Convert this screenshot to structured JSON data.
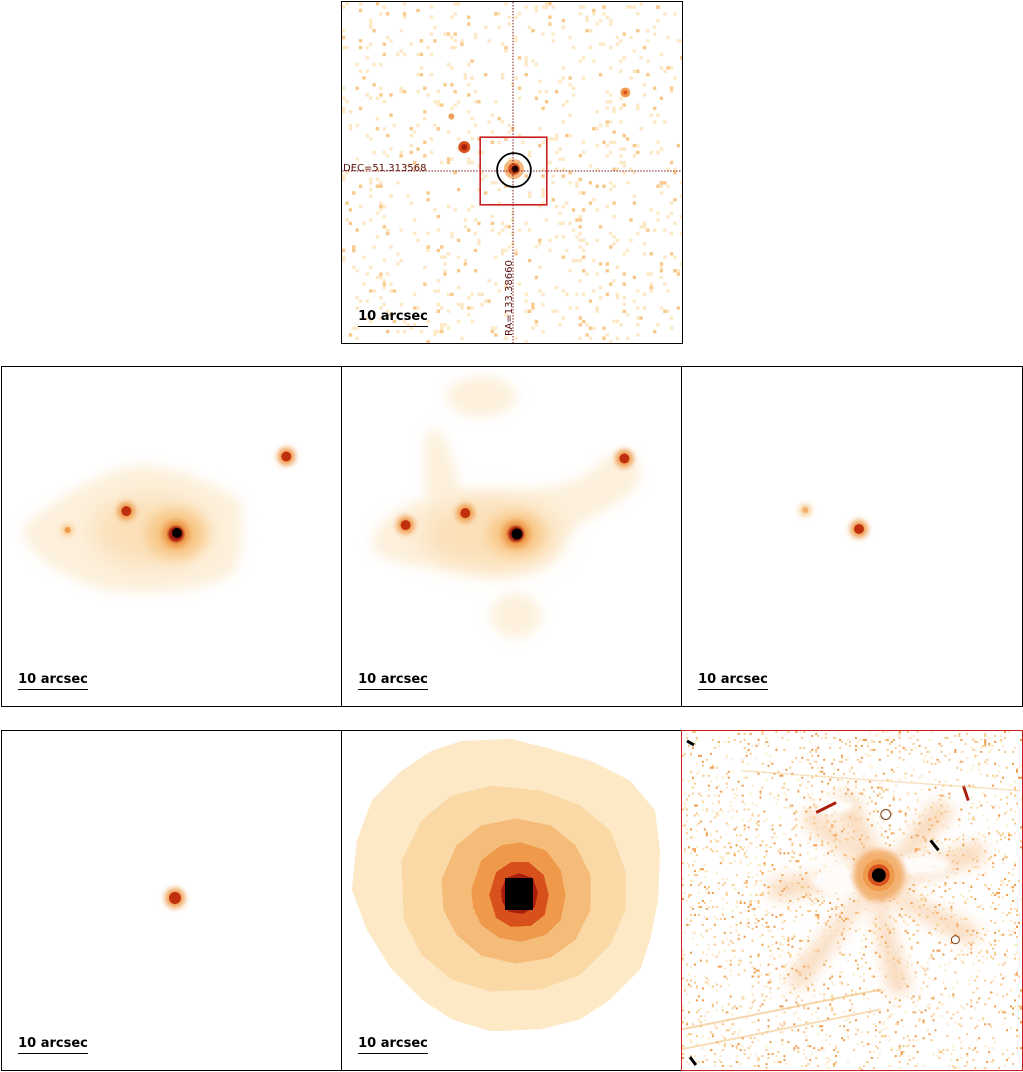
{
  "panels": [
    {
      "id": "top",
      "scale_label": "10 arcsec"
    },
    {
      "id": "middle-left",
      "scale_label": "10 arcsec"
    },
    {
      "id": "middle-center",
      "scale_label": "10 arcsec"
    },
    {
      "id": "middle-right",
      "scale_label": "10 arcsec"
    },
    {
      "id": "bottom-left",
      "scale_label": "10 arcsec"
    },
    {
      "id": "bottom-center",
      "scale_label": "10 arcsec"
    },
    {
      "id": "bottom-right",
      "scale_label": ""
    }
  ],
  "crosshair": {
    "dec_label": "DEC=51.313568",
    "ra_label": "RA=133.38660",
    "line_color": "#7a1a1a",
    "box_color": "#c81e1e",
    "circle_color": "#000000"
  },
  "colors": {
    "background": "#ffffff",
    "frame": "#000000",
    "highlight_frame": "#c81e1e",
    "colormap": [
      "#ffffff",
      "#fde9c6",
      "#f8c98a",
      "#ef9a4a",
      "#d8501c",
      "#a81d0c",
      "#000000"
    ]
  }
}
